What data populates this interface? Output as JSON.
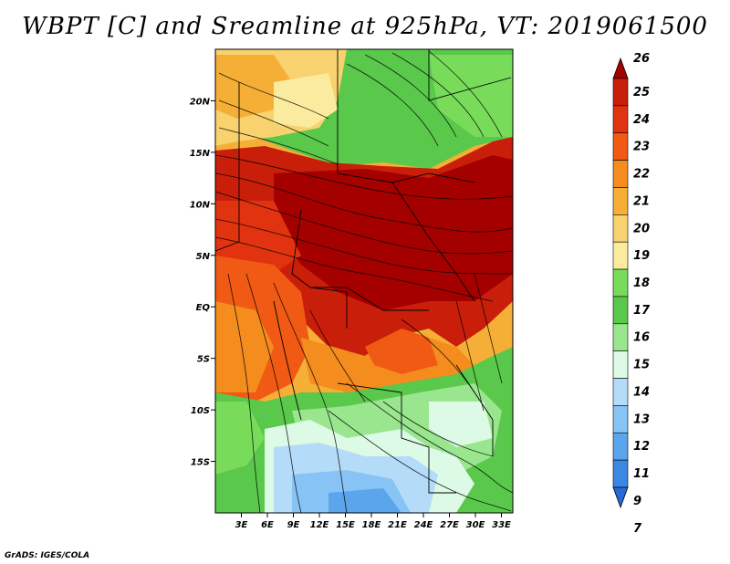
{
  "title": "WBPT [C] and Sreamline at 925hPa, VT: 2019061500",
  "credit": "GrADS: IGES/COLA",
  "map": {
    "lon_ticks": [
      "3E",
      "6E",
      "9E",
      "12E",
      "15E",
      "18E",
      "21E",
      "24E",
      "27E",
      "30E",
      "33E"
    ],
    "lat_ticks": [
      "20N",
      "15N",
      "10N",
      "5N",
      "EQ",
      "5S",
      "10S",
      "15S"
    ],
    "lat_values": [
      20,
      15,
      10,
      5,
      0,
      -5,
      -10,
      -15
    ],
    "lon_range": [
      0,
      35
    ],
    "lat_range": [
      -20,
      25
    ]
  },
  "colorbar": {
    "labels": [
      "26",
      "25",
      "24",
      "23",
      "22",
      "21",
      "20",
      "19",
      "18",
      "17",
      "16",
      "15",
      "14",
      "13",
      "12",
      "11",
      "9",
      "7"
    ],
    "colors": [
      "#a50000",
      "#c81e0a",
      "#e1330f",
      "#f05a14",
      "#f58c1e",
      "#f5af37",
      "#f8d26e",
      "#faeb9f",
      "#78dc5a",
      "#5ac84b",
      "#9ae68f",
      "#dcfae6",
      "#b4dcf8",
      "#87c3f5",
      "#5aa5eb",
      "#3c87e1",
      "#2869d7"
    ]
  }
}
